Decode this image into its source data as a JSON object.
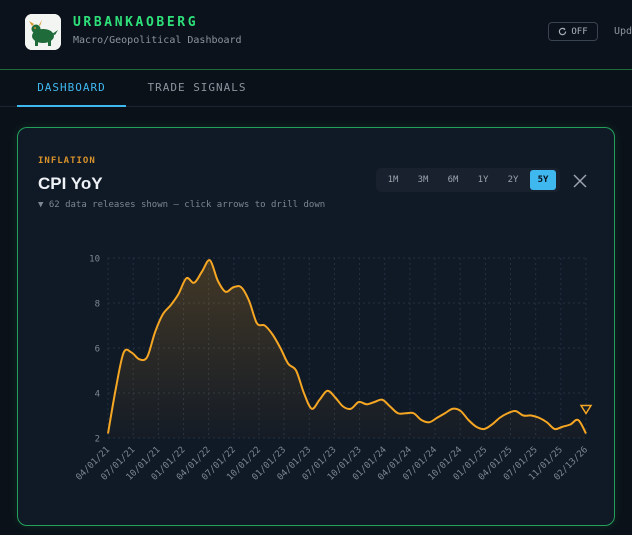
{
  "header": {
    "brand": "URBANKAOBERG",
    "subtitle": "Macro/Geopolitical Dashboard",
    "toggle_label": "OFF",
    "update_label": "Upd"
  },
  "tabs": [
    {
      "label": "DASHBOARD",
      "active": true
    },
    {
      "label": "TRADE SIGNALS",
      "active": false
    }
  ],
  "card": {
    "category": "INFLATION",
    "title": "CPI YoY",
    "hint": "▼ 62 data releases shown — click arrows to drill down",
    "ranges": [
      {
        "label": "1M",
        "active": false
      },
      {
        "label": "3M",
        "active": false
      },
      {
        "label": "6M",
        "active": false
      },
      {
        "label": "1Y",
        "active": false
      },
      {
        "label": "2Y",
        "active": false
      },
      {
        "label": "5Y",
        "active": true
      }
    ]
  },
  "colors": {
    "accent_green": "#2ee07a",
    "accent_blue": "#3fb8f0",
    "line": "#f5a623",
    "category": "#d9932a"
  },
  "chart_data": {
    "type": "area",
    "y_ticks": [
      "2",
      "4",
      "6",
      "8",
      "10"
    ],
    "ylim": [
      2,
      10
    ],
    "x_tick_labels": [
      "04/01/21",
      "07/01/21",
      "10/01/21",
      "01/01/22",
      "04/01/22",
      "07/01/22",
      "10/01/22",
      "01/01/23",
      "04/01/23",
      "07/01/23",
      "10/01/23",
      "01/01/24",
      "04/01/24",
      "07/01/24",
      "10/01/24",
      "01/01/25",
      "04/01/25",
      "07/01/25",
      "11/01/25",
      "02/13/26"
    ],
    "values": [
      2.2,
      4.2,
      5.8,
      5.8,
      5.5,
      5.6,
      6.7,
      7.5,
      7.9,
      8.4,
      9.1,
      8.9,
      9.4,
      9.9,
      9.0,
      8.5,
      8.7,
      8.7,
      8.1,
      7.1,
      7.0,
      6.6,
      6.0,
      5.3,
      5.0,
      4.0,
      3.3,
      3.7,
      4.1,
      3.8,
      3.4,
      3.3,
      3.6,
      3.5,
      3.6,
      3.7,
      3.4,
      3.1,
      3.1,
      3.1,
      2.8,
      2.7,
      2.9,
      3.1,
      3.3,
      3.2,
      2.8,
      2.5,
      2.4,
      2.6,
      2.9,
      3.1,
      3.2,
      3.0,
      3.0,
      2.9,
      2.7,
      2.4,
      2.5,
      2.6,
      2.8,
      2.2
    ],
    "grid": true,
    "title": "CPI YoY"
  }
}
